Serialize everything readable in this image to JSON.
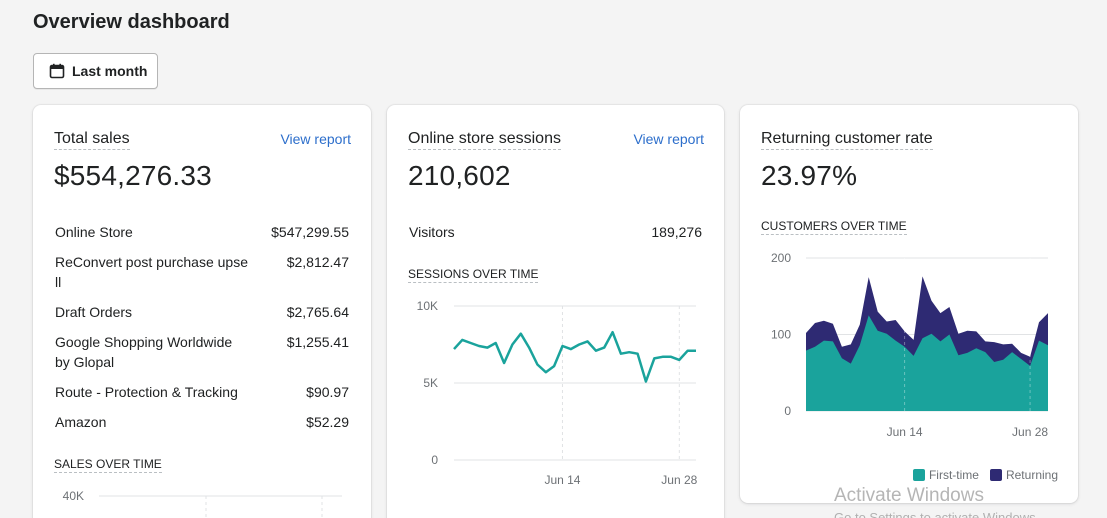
{
  "header": {
    "title": "Overview dashboard",
    "date_button_label": "Last month"
  },
  "total_sales": {
    "title": "Total sales",
    "view_report": "View report",
    "value": "$554,276.33",
    "rows": [
      {
        "label": "Online Store",
        "value": "$547,299.55"
      },
      {
        "label": "ReConvert post purchase upsell",
        "value": "$2,812.47"
      },
      {
        "label": "Draft Orders",
        "value": "$2,765.64"
      },
      {
        "label": "Google Shopping Worldwide by Glopal",
        "value": "$1,255.41"
      },
      {
        "label": "Route - Protection & Tracking",
        "value": "$90.97"
      },
      {
        "label": "Amazon",
        "value": "$52.29"
      }
    ],
    "chart_label": "SALES OVER TIME",
    "chart_tick_top": "40K"
  },
  "sessions": {
    "title": "Online store sessions",
    "view_report": "View report",
    "value": "210,602",
    "visitors_label": "Visitors",
    "visitors_value": "189,276",
    "chart_label": "SESSIONS OVER TIME"
  },
  "returning": {
    "title": "Returning customer rate",
    "value": "23.97%",
    "chart_label": "CUSTOMERS OVER TIME",
    "legend_first": "First-time",
    "legend_returning": "Returning"
  },
  "colors": {
    "teal": "#1aa39c",
    "navy": "#2e2a73",
    "link": "#2c6ecb"
  },
  "windows_watermark": {
    "title": "Activate Windows",
    "subtitle": "Go to Settings to activate Windows."
  },
  "chart_data": [
    {
      "type": "line",
      "title": "SESSIONS OVER TIME",
      "x_ticks": [
        "Jun 14",
        "Jun 28"
      ],
      "y_ticks": [
        "0",
        "5K",
        "10K"
      ],
      "ylim": [
        0,
        10000
      ],
      "series": [
        {
          "values": [
            7200,
            7800,
            7600,
            7400,
            7300,
            7600,
            6300,
            7500,
            8200,
            7300,
            6200,
            5700,
            6100,
            7400,
            7200,
            7500,
            7700,
            7100,
            7300,
            8300,
            6900,
            7000,
            6900,
            5100,
            6600,
            6700,
            6700,
            6500,
            7100,
            7100
          ]
        }
      ]
    },
    {
      "type": "area",
      "title": "CUSTOMERS OVER TIME",
      "x_ticks": [
        "Jun 14",
        "Jun 28"
      ],
      "y_ticks": [
        "0",
        "100",
        "200"
      ],
      "ylim": [
        0,
        200
      ],
      "series": [
        {
          "name": "First-time",
          "values": [
            79,
            84,
            92,
            91,
            69,
            62,
            86,
            125,
            105,
            101,
            92,
            84,
            72,
            95,
            101,
            91,
            100,
            73,
            76,
            82,
            77,
            64,
            67,
            77,
            68,
            59,
            92,
            86
          ]
        },
        {
          "name": "Returning",
          "values": [
            23,
            31,
            26,
            23,
            15,
            25,
            27,
            50,
            25,
            16,
            27,
            20,
            21,
            81,
            43,
            37,
            36,
            28,
            29,
            22,
            14,
            26,
            20,
            11,
            8,
            12,
            24,
            42
          ]
        }
      ]
    }
  ]
}
